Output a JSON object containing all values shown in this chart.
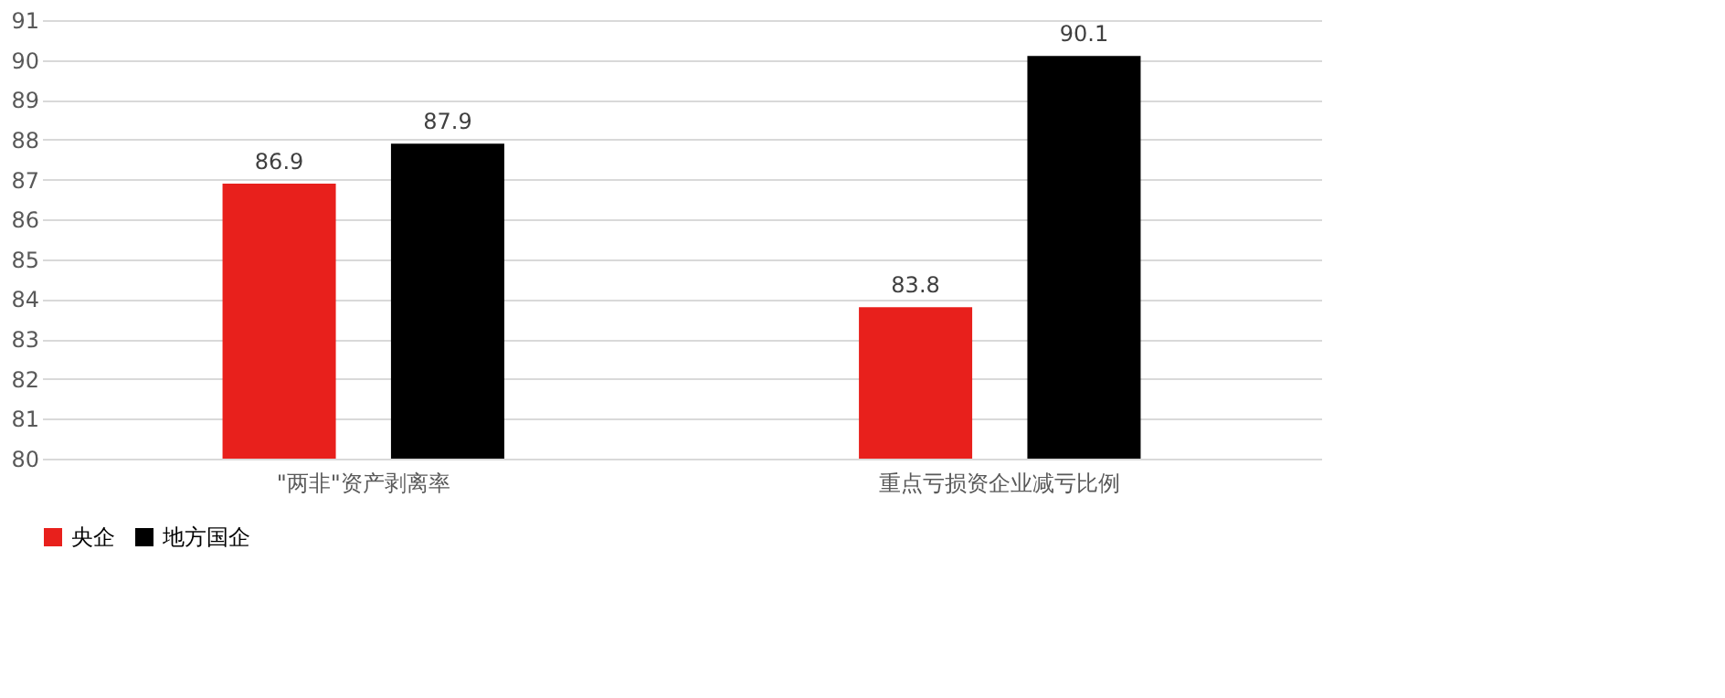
{
  "chart_data": {
    "type": "bar",
    "categories": [
      "\"两非\"资产剥离率",
      "重点亏损资企业减亏比例"
    ],
    "series": [
      {
        "name": "央企",
        "color": "#e8201c",
        "values": [
          86.9,
          83.8
        ]
      },
      {
        "name": "地方国企",
        "color": "#000000",
        "values": [
          87.9,
          90.1
        ]
      }
    ],
    "ylim": [
      80,
      91
    ],
    "yticks": [
      80,
      81,
      82,
      83,
      84,
      85,
      86,
      87,
      88,
      89,
      90,
      91
    ],
    "grid": "y",
    "data_labels": true,
    "legend": "bottom"
  }
}
